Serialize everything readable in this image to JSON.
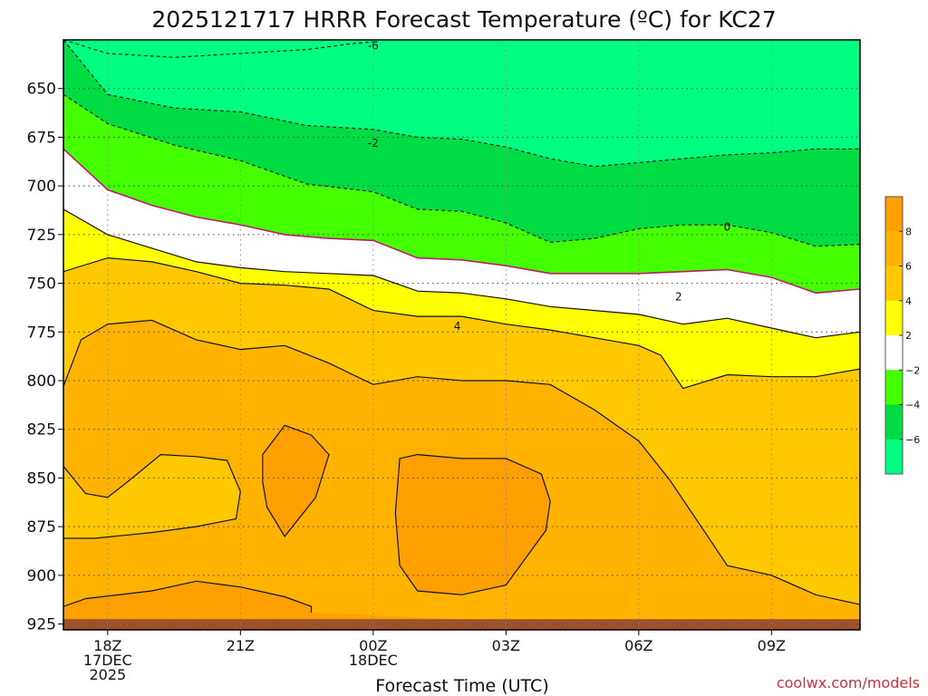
{
  "chart_data": {
    "type": "contour",
    "title": "2025121717 HRRR Forecast Temperature (ºC) for KC27",
    "xlabel": "Forecast Time (UTC)",
    "ylabel": "",
    "credit": "coolwx.com/models",
    "y_axis": {
      "inverted": true,
      "ylim": [
        625,
        928
      ],
      "ticks": [
        "650",
        "675",
        "700",
        "725",
        "750",
        "775",
        "800",
        "825",
        "850",
        "875",
        "900",
        "925"
      ]
    },
    "x_axis": {
      "xlim_hours": [
        -1,
        17
      ],
      "ticks": [
        {
          "hour": 0,
          "lines": [
            "18Z",
            "17DEC",
            "2025"
          ]
        },
        {
          "hour": 3,
          "lines": [
            "21Z"
          ]
        },
        {
          "hour": 6,
          "lines": [
            "00Z",
            "18DEC"
          ]
        },
        {
          "hour": 9,
          "lines": [
            "03Z"
          ]
        },
        {
          "hour": 12,
          "lines": [
            "06Z"
          ]
        },
        {
          "hour": 15,
          "lines": [
            "09Z"
          ]
        }
      ]
    },
    "grid": true,
    "colorbar": {
      "position": "right",
      "ticks": [
        "8",
        "6",
        "4",
        "2",
        "−2",
        "−4",
        "−6"
      ],
      "bins": [
        {
          "range": "8 to 10",
          "color": "#ff9f00"
        },
        {
          "range": "6 to 8",
          "color": "#ffb300"
        },
        {
          "range": "4 to 6",
          "color": "#ffc800"
        },
        {
          "range": "2 to 4",
          "color": "#ffff00"
        },
        {
          "range": "-2 to 2",
          "color": "#ffffff"
        },
        {
          "range": "-4 to -2",
          "color": "#44ff00"
        },
        {
          "range": "-6 to -4",
          "color": "#00dd44"
        },
        {
          "range": "-8 to -6",
          "color": "#00ff80"
        }
      ]
    },
    "ground_color": "#a0522d",
    "contour_labels": [
      {
        "text": "-6",
        "hour": 6.0,
        "level": 628
      },
      {
        "text": "-2",
        "hour": 6.0,
        "level": 678
      },
      {
        "text": "0",
        "hour": 14.0,
        "level": 721
      },
      {
        "text": "2",
        "hour": 12.9,
        "level": 757
      },
      {
        "text": "4",
        "hour": 7.9,
        "level": 772
      }
    ],
    "contours": [
      {
        "name": "-6",
        "color": "#222",
        "dash": true,
        "points": [
          [
            -1,
            625
          ],
          [
            0,
            632
          ],
          [
            1.5,
            634
          ],
          [
            3,
            632
          ],
          [
            4.5,
            630
          ],
          [
            5.5,
            627
          ],
          [
            6,
            626
          ]
        ]
      },
      {
        "name": "-4",
        "color": "#222",
        "dash": true,
        "points": [
          [
            -1,
            625
          ],
          [
            0,
            653
          ],
          [
            1.5,
            660
          ],
          [
            3,
            662
          ],
          [
            4.5,
            669
          ],
          [
            6,
            671
          ],
          [
            7,
            675
          ],
          [
            8,
            676
          ],
          [
            9,
            680
          ],
          [
            10,
            686
          ],
          [
            11,
            690
          ],
          [
            12,
            688
          ],
          [
            13,
            686
          ],
          [
            14,
            684
          ],
          [
            15,
            683
          ],
          [
            16,
            681
          ],
          [
            17,
            681
          ]
        ]
      },
      {
        "name": "-2",
        "color": "#222",
        "dash": true,
        "points": [
          [
            -1,
            653
          ],
          [
            0,
            668
          ],
          [
            1.5,
            679
          ],
          [
            3,
            687
          ],
          [
            4.5,
            699
          ],
          [
            6,
            703
          ],
          [
            7,
            712
          ],
          [
            8,
            713
          ],
          [
            9,
            719
          ],
          [
            10,
            729
          ],
          [
            11,
            727
          ],
          [
            12,
            722
          ],
          [
            13,
            720
          ],
          [
            14,
            720
          ],
          [
            15,
            724
          ],
          [
            16,
            731
          ],
          [
            17,
            730
          ]
        ]
      },
      {
        "name": "0",
        "color": "#c0196b",
        "dash": false,
        "points": [
          [
            -1,
            681
          ],
          [
            0,
            702
          ],
          [
            1,
            710
          ],
          [
            2,
            716
          ],
          [
            3,
            720
          ],
          [
            4,
            725
          ],
          [
            5,
            727
          ],
          [
            6,
            728
          ],
          [
            7,
            737
          ],
          [
            8,
            738
          ],
          [
            9,
            741
          ],
          [
            10,
            745
          ],
          [
            11,
            745
          ],
          [
            12,
            745
          ],
          [
            13,
            744
          ],
          [
            14,
            743
          ],
          [
            15,
            747
          ],
          [
            16,
            755
          ],
          [
            17,
            753
          ]
        ]
      },
      {
        "name": "2",
        "color": "#111",
        "dash": false,
        "points": [
          [
            -1,
            712
          ],
          [
            0,
            725
          ],
          [
            1,
            732
          ],
          [
            2,
            739
          ],
          [
            3,
            742
          ],
          [
            4,
            744
          ],
          [
            5,
            745
          ],
          [
            6,
            746
          ],
          [
            7,
            754
          ],
          [
            8,
            755
          ],
          [
            9,
            758
          ],
          [
            10,
            762
          ],
          [
            11,
            764
          ],
          [
            12,
            766
          ],
          [
            13,
            771
          ],
          [
            14,
            768
          ],
          [
            15,
            773
          ],
          [
            16,
            778
          ],
          [
            17,
            775
          ]
        ]
      },
      {
        "name": "4a",
        "color": "#111",
        "dash": false,
        "points": [
          [
            -1,
            744
          ],
          [
            0,
            737
          ],
          [
            1,
            739
          ],
          [
            2,
            744
          ],
          [
            3,
            750
          ],
          [
            4,
            751
          ],
          [
            5,
            753
          ],
          [
            6,
            764
          ],
          [
            7,
            767
          ],
          [
            8,
            767
          ],
          [
            9,
            771
          ],
          [
            10,
            774
          ],
          [
            11,
            778
          ],
          [
            12,
            782
          ],
          [
            12.5,
            787
          ],
          [
            13,
            804
          ],
          [
            14,
            797
          ],
          [
            15,
            798
          ],
          [
            16,
            798
          ],
          [
            17,
            794
          ]
        ]
      },
      {
        "name": "4b",
        "color": "#111",
        "dash": false,
        "points": [
          [
            -1,
            803
          ],
          [
            -0.6,
            779
          ],
          [
            0,
            771
          ],
          [
            1,
            769
          ],
          [
            2,
            779
          ],
          [
            3,
            784
          ],
          [
            4,
            782
          ],
          [
            5,
            791
          ],
          [
            6,
            802
          ],
          [
            7,
            798
          ],
          [
            8,
            800
          ],
          [
            9,
            800
          ],
          [
            10,
            802
          ],
          [
            11,
            815
          ],
          [
            12,
            831
          ],
          [
            12.7,
            851
          ],
          [
            13.5,
            878
          ],
          [
            14,
            895
          ],
          [
            15,
            900
          ],
          [
            16,
            910
          ],
          [
            17,
            915
          ]
        ]
      },
      {
        "name": "6a",
        "color": "#111",
        "dash": false,
        "closed": true,
        "points": [
          [
            -1,
            844
          ],
          [
            -0.5,
            858
          ],
          [
            0,
            860
          ],
          [
            0.5,
            851
          ],
          [
            1.2,
            838
          ],
          [
            2,
            839
          ],
          [
            2.7,
            841
          ],
          [
            3.0,
            857
          ],
          [
            2.9,
            871
          ],
          [
            2.0,
            875
          ],
          [
            1,
            878
          ],
          [
            -0.3,
            881
          ],
          [
            -1,
            881
          ]
        ]
      },
      {
        "name": "8a",
        "color": "#111",
        "dash": false,
        "closed": true,
        "points": [
          [
            3.5,
            838
          ],
          [
            4,
            823
          ],
          [
            4.6,
            828
          ],
          [
            5,
            838
          ],
          [
            4.7,
            860
          ],
          [
            4,
            880
          ],
          [
            3.6,
            865
          ],
          [
            3.5,
            852
          ]
        ]
      },
      {
        "name": "8b",
        "color": "#111",
        "dash": false,
        "closed": true,
        "points": [
          [
            6.6,
            840
          ],
          [
            7,
            838
          ],
          [
            8,
            840
          ],
          [
            9,
            840
          ],
          [
            9.8,
            848
          ],
          [
            10,
            862
          ],
          [
            9.9,
            877
          ],
          [
            9,
            905
          ],
          [
            8,
            910
          ],
          [
            7,
            908
          ],
          [
            6.6,
            895
          ],
          [
            6.5,
            868
          ]
        ]
      },
      {
        "name": "8c",
        "color": "#111",
        "dash": false,
        "points": [
          [
            -1,
            916
          ],
          [
            -0.5,
            912
          ],
          [
            1,
            908
          ],
          [
            2,
            903
          ],
          [
            3,
            906
          ],
          [
            4,
            911
          ],
          [
            4.6,
            916
          ],
          [
            4.6,
            919
          ]
        ]
      }
    ]
  }
}
